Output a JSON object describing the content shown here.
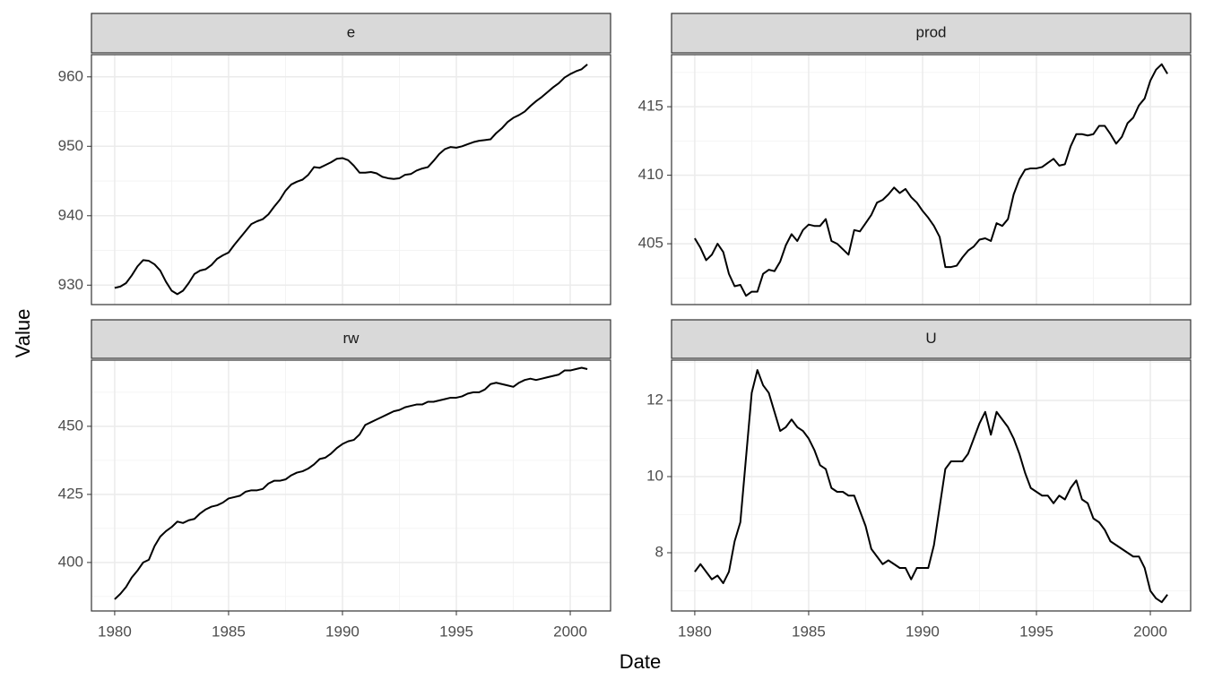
{
  "x_label": "Date",
  "y_label": "Value",
  "chart_data": [
    {
      "type": "line",
      "title": "e",
      "color": "#000000",
      "grid": true,
      "x": [
        1980,
        1980.25,
        1980.5,
        1980.75,
        1981,
        1981.25,
        1981.5,
        1981.75,
        1982,
        1982.25,
        1982.5,
        1982.75,
        1983,
        1983.25,
        1983.5,
        1983.75,
        1984,
        1984.25,
        1984.5,
        1984.75,
        1985,
        1985.25,
        1985.5,
        1985.75,
        1986,
        1986.25,
        1986.5,
        1986.75,
        1987,
        1987.25,
        1987.5,
        1987.75,
        1988,
        1988.25,
        1988.5,
        1988.75,
        1989,
        1989.25,
        1989.5,
        1989.75,
        1990,
        1990.25,
        1990.5,
        1990.75,
        1991,
        1991.25,
        1991.5,
        1991.75,
        1992,
        1992.25,
        1992.5,
        1992.75,
        1993,
        1993.25,
        1993.5,
        1993.75,
        1994,
        1994.25,
        1994.5,
        1994.75,
        1995,
        1995.25,
        1995.5,
        1995.75,
        1996,
        1996.25,
        1996.5,
        1996.75,
        1997,
        1997.25,
        1997.5,
        1997.75,
        1998,
        1998.25,
        1998.5,
        1998.75,
        1999,
        1999.25,
        1999.5,
        1999.75,
        2000,
        2000.25,
        2000.5,
        2000.75
      ],
      "values": [
        929.6,
        929.8,
        930.3,
        931.4,
        932.7,
        933.6,
        933.5,
        933.0,
        932.1,
        930.5,
        929.2,
        928.7,
        929.2,
        930.3,
        931.6,
        932.1,
        932.3,
        932.9,
        933.8,
        934.3,
        934.7,
        935.8,
        936.8,
        937.8,
        938.8,
        939.2,
        939.5,
        940.2,
        941.3,
        942.3,
        943.6,
        944.5,
        944.9,
        945.2,
        945.9,
        947.0,
        946.9,
        947.3,
        947.7,
        948.2,
        948.3,
        948.0,
        947.2,
        946.2,
        946.2,
        946.3,
        946.1,
        945.6,
        945.4,
        945.3,
        945.4,
        945.9,
        946.0,
        946.5,
        946.8,
        947.0,
        947.9,
        948.9,
        949.6,
        949.9,
        949.8,
        950.0,
        950.3,
        950.6,
        950.8,
        950.9,
        951.0,
        951.9,
        952.6,
        953.5,
        954.1,
        954.5,
        955.0,
        955.8,
        956.5,
        957.1,
        957.8,
        958.5,
        959.1,
        959.9,
        960.4,
        960.8,
        961.1,
        961.8
      ],
      "xlim": [
        1978.98,
        2001.77
      ],
      "xticks": [
        1980,
        1985,
        1990,
        1995,
        2000
      ],
      "ylim": [
        927.2,
        963.2
      ],
      "yticks": [
        930,
        940,
        950,
        960
      ]
    },
    {
      "type": "line",
      "title": "prod",
      "color": "#000000",
      "grid": true,
      "x": [
        1980,
        1980.25,
        1980.5,
        1980.75,
        1981,
        1981.25,
        1981.5,
        1981.75,
        1982,
        1982.25,
        1982.5,
        1982.75,
        1983,
        1983.25,
        1983.5,
        1983.75,
        1984,
        1984.25,
        1984.5,
        1984.75,
        1985,
        1985.25,
        1985.5,
        1985.75,
        1986,
        1986.25,
        1986.5,
        1986.75,
        1987,
        1987.25,
        1987.5,
        1987.75,
        1988,
        1988.25,
        1988.5,
        1988.75,
        1989,
        1989.25,
        1989.5,
        1989.75,
        1990,
        1990.25,
        1990.5,
        1990.75,
        1991,
        1991.25,
        1991.5,
        1991.75,
        1992,
        1992.25,
        1992.5,
        1992.75,
        1993,
        1993.25,
        1993.5,
        1993.75,
        1994,
        1994.25,
        1994.5,
        1994.75,
        1995,
        1995.25,
        1995.5,
        1995.75,
        1996,
        1996.25,
        1996.5,
        1996.75,
        1997,
        1997.25,
        1997.5,
        1997.75,
        1998,
        1998.25,
        1998.5,
        1998.75,
        1999,
        1999.25,
        1999.5,
        1999.75,
        2000,
        2000.25,
        2000.5,
        2000.75
      ],
      "values": [
        405.4,
        404.7,
        403.8,
        404.2,
        405.0,
        404.4,
        402.8,
        401.9,
        402.0,
        401.2,
        401.5,
        401.5,
        402.8,
        403.1,
        403.0,
        403.7,
        404.9,
        405.7,
        405.2,
        406.0,
        406.4,
        406.3,
        406.3,
        406.8,
        405.2,
        405.0,
        404.6,
        404.2,
        406.0,
        405.9,
        406.5,
        407.1,
        408.0,
        408.2,
        408.6,
        409.1,
        408.7,
        409.0,
        408.4,
        408.0,
        407.4,
        406.9,
        406.3,
        405.5,
        403.3,
        403.3,
        403.4,
        404.0,
        404.5,
        404.8,
        405.3,
        405.4,
        405.2,
        406.5,
        406.3,
        406.8,
        408.6,
        409.7,
        410.4,
        410.5,
        410.5,
        410.6,
        410.9,
        411.2,
        410.7,
        410.8,
        412.1,
        413.0,
        413.0,
        412.9,
        413.0,
        413.6,
        413.6,
        413.0,
        412.3,
        412.8,
        413.8,
        414.2,
        415.1,
        415.6,
        416.9,
        417.7,
        418.1,
        417.4
      ],
      "xlim": [
        1978.98,
        2001.77
      ],
      "xticks": [
        1980,
        1985,
        1990,
        1995,
        2000
      ],
      "ylim": [
        400.56,
        418.8
      ],
      "yticks": [
        405,
        410,
        415
      ]
    },
    {
      "type": "line",
      "title": "rw",
      "color": "#000000",
      "grid": true,
      "x": [
        1980,
        1980.25,
        1980.5,
        1980.75,
        1981,
        1981.25,
        1981.5,
        1981.75,
        1982,
        1982.25,
        1982.5,
        1982.75,
        1983,
        1983.25,
        1983.5,
        1983.75,
        1984,
        1984.25,
        1984.5,
        1984.75,
        1985,
        1985.25,
        1985.5,
        1985.75,
        1986,
        1986.25,
        1986.5,
        1986.75,
        1987,
        1987.25,
        1987.5,
        1987.75,
        1988,
        1988.25,
        1988.5,
        1988.75,
        1989,
        1989.25,
        1989.5,
        1989.75,
        1990,
        1990.25,
        1990.5,
        1990.75,
        1991,
        1991.25,
        1991.5,
        1991.75,
        1992,
        1992.25,
        1992.5,
        1992.75,
        1993,
        1993.25,
        1993.5,
        1993.75,
        1994,
        1994.25,
        1994.5,
        1994.75,
        1995,
        1995.25,
        1995.5,
        1995.75,
        1996,
        1996.25,
        1996.5,
        1996.75,
        1997,
        1997.25,
        1997.5,
        1997.75,
        1998,
        1998.25,
        1998.5,
        1998.75,
        1999,
        1999.25,
        1999.5,
        1999.75,
        2000,
        2000.25,
        2000.5,
        2000.75
      ],
      "values": [
        386.5,
        388.5,
        391.0,
        394.5,
        397.0,
        400.0,
        401.0,
        406.0,
        409.5,
        411.5,
        413.0,
        415.0,
        414.5,
        415.5,
        416.0,
        418.0,
        419.5,
        420.5,
        421.0,
        422.0,
        423.5,
        424.0,
        424.5,
        426.0,
        426.5,
        426.5,
        427.0,
        429.0,
        430.0,
        430.0,
        430.5,
        432.0,
        433.0,
        433.5,
        434.5,
        436.0,
        438.0,
        438.5,
        440.0,
        442.0,
        443.5,
        444.5,
        445.0,
        447.0,
        450.5,
        451.5,
        452.5,
        453.5,
        454.5,
        455.5,
        456.0,
        457.0,
        457.5,
        458.0,
        458.0,
        459.0,
        459.0,
        459.5,
        460.0,
        460.5,
        460.5,
        461.0,
        462.0,
        462.5,
        462.5,
        463.5,
        465.5,
        466.0,
        465.5,
        465.0,
        464.5,
        466.0,
        467.0,
        467.5,
        467.0,
        467.5,
        468.0,
        468.5,
        469.0,
        470.5,
        470.5,
        471.0,
        471.5,
        471.0
      ],
      "xlim": [
        1978.98,
        2001.77
      ],
      "xticks": [
        1980,
        1985,
        1990,
        1995,
        2000
      ],
      "ylim": [
        382.2,
        474.3
      ],
      "yticks": [
        400,
        425,
        450
      ]
    },
    {
      "type": "line",
      "title": "U",
      "color": "#000000",
      "grid": true,
      "x": [
        1980,
        1980.25,
        1980.5,
        1980.75,
        1981,
        1981.25,
        1981.5,
        1981.75,
        1982,
        1982.25,
        1982.5,
        1982.75,
        1983,
        1983.25,
        1983.5,
        1983.75,
        1984,
        1984.25,
        1984.5,
        1984.75,
        1985,
        1985.25,
        1985.5,
        1985.75,
        1986,
        1986.25,
        1986.5,
        1986.75,
        1987,
        1987.25,
        1987.5,
        1987.75,
        1988,
        1988.25,
        1988.5,
        1988.75,
        1989,
        1989.25,
        1989.5,
        1989.75,
        1990,
        1990.25,
        1990.5,
        1990.75,
        1991,
        1991.25,
        1991.5,
        1991.75,
        1992,
        1992.25,
        1992.5,
        1992.75,
        1993,
        1993.25,
        1993.5,
        1993.75,
        1994,
        1994.25,
        1994.5,
        1994.75,
        1995,
        1995.25,
        1995.5,
        1995.75,
        1996,
        1996.25,
        1996.5,
        1996.75,
        1997,
        1997.25,
        1997.5,
        1997.75,
        1998,
        1998.25,
        1998.5,
        1998.75,
        1999,
        1999.25,
        1999.5,
        1999.75,
        2000,
        2000.25,
        2000.5,
        2000.75
      ],
      "values": [
        7.5,
        7.7,
        7.5,
        7.3,
        7.4,
        7.2,
        7.5,
        8.3,
        8.8,
        10.5,
        12.2,
        12.8,
        12.4,
        12.2,
        11.7,
        11.2,
        11.3,
        11.5,
        11.3,
        11.2,
        11.0,
        10.7,
        10.3,
        10.2,
        9.7,
        9.6,
        9.6,
        9.5,
        9.5,
        9.1,
        8.7,
        8.1,
        7.9,
        7.7,
        7.8,
        7.7,
        7.6,
        7.6,
        7.3,
        7.6,
        7.6,
        7.6,
        8.2,
        9.2,
        10.2,
        10.4,
        10.4,
        10.4,
        10.6,
        11.0,
        11.4,
        11.7,
        11.1,
        11.7,
        11.5,
        11.3,
        11.0,
        10.6,
        10.1,
        9.7,
        9.6,
        9.5,
        9.5,
        9.3,
        9.5,
        9.4,
        9.7,
        9.9,
        9.4,
        9.3,
        8.9,
        8.8,
        8.6,
        8.3,
        8.2,
        8.1,
        8.0,
        7.9,
        7.9,
        7.6,
        7.0,
        6.8,
        6.7,
        6.9
      ],
      "xlim": [
        1978.98,
        2001.77
      ],
      "xticks": [
        1980,
        1985,
        1990,
        1995,
        2000
      ],
      "ylim": [
        6.47,
        13.06
      ],
      "yticks": [
        8,
        10,
        12
      ]
    }
  ]
}
